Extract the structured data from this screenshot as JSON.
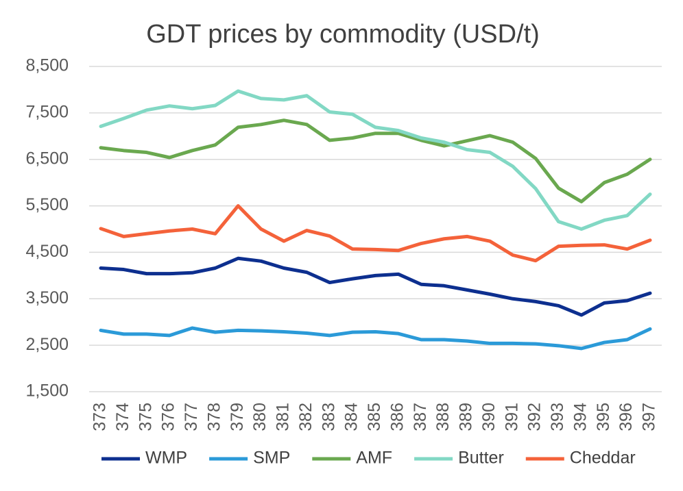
{
  "chart_data": {
    "type": "line",
    "title": "GDT prices by commodity (USD/t)",
    "categories": [
      "373",
      "374",
      "375",
      "376",
      "377",
      "378",
      "379",
      "380",
      "381",
      "382",
      "383",
      "384",
      "385",
      "386",
      "387",
      "388",
      "389",
      "390",
      "391",
      "392",
      "393",
      "394",
      "395",
      "396",
      "397"
    ],
    "series": [
      {
        "name": "WMP",
        "color": "#0d2f8f",
        "values": [
          4160,
          4130,
          4040,
          4040,
          4060,
          4160,
          4370,
          4310,
          4160,
          4070,
          3850,
          3930,
          4000,
          4030,
          3810,
          3780,
          3690,
          3600,
          3500,
          3440,
          3350,
          3150,
          3410,
          3460,
          3620
        ]
      },
      {
        "name": "SMP",
        "color": "#2b9ad8",
        "values": [
          2820,
          2740,
          2740,
          2710,
          2870,
          2780,
          2820,
          2810,
          2790,
          2760,
          2710,
          2780,
          2790,
          2750,
          2620,
          2620,
          2590,
          2540,
          2540,
          2530,
          2490,
          2430,
          2560,
          2620,
          2850
        ]
      },
      {
        "name": "AMF",
        "color": "#6aa84f",
        "values": [
          6750,
          6690,
          6650,
          6540,
          6690,
          6810,
          7190,
          7250,
          7340,
          7250,
          6910,
          6960,
          7060,
          7060,
          6910,
          6790,
          6900,
          7010,
          6870,
          6520,
          5880,
          5590,
          6000,
          6180,
          6500
        ]
      },
      {
        "name": "Butter",
        "color": "#82d8c4",
        "values": [
          7210,
          7380,
          7560,
          7650,
          7590,
          7660,
          7970,
          7810,
          7780,
          7870,
          7520,
          7470,
          7190,
          7120,
          6960,
          6870,
          6710,
          6650,
          6350,
          5870,
          5160,
          5000,
          5190,
          5290,
          5750
        ]
      },
      {
        "name": "Cheddar",
        "color": "#f4623a",
        "values": [
          5010,
          4840,
          4900,
          4960,
          5000,
          4900,
          5500,
          5000,
          4740,
          4970,
          4850,
          4570,
          4560,
          4540,
          4690,
          4790,
          4840,
          4740,
          4440,
          4320,
          4630,
          4650,
          4660,
          4570,
          4760
        ]
      }
    ],
    "ylim": [
      1500,
      8500
    ],
    "yticks": [
      {
        "value": 1500,
        "label": "1,500"
      },
      {
        "value": 2500,
        "label": "2,500"
      },
      {
        "value": 3500,
        "label": "3,500"
      },
      {
        "value": 4500,
        "label": "4,500"
      },
      {
        "value": 5500,
        "label": "5,500"
      },
      {
        "value": 6500,
        "label": "6,500"
      },
      {
        "value": 7500,
        "label": "7,500"
      },
      {
        "value": 8500,
        "label": "8,500"
      }
    ],
    "grid": true
  }
}
